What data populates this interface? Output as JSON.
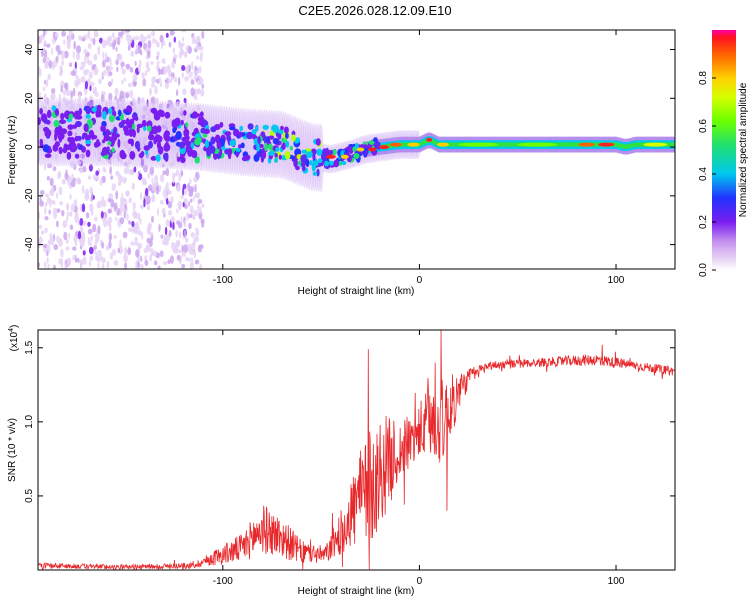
{
  "title": "C2E5.2026.028.12.09.E10",
  "chart_data": [
    {
      "type": "heatmap",
      "name": "spectrogram",
      "xlabel": "Height of straight line (km)",
      "ylabel": "Frequency (Hz)",
      "xlim": [
        -194,
        130
      ],
      "ylim": [
        -50,
        48
      ],
      "xticks": [
        -100,
        0,
        100
      ],
      "yticks": [
        -40,
        -20,
        0,
        20,
        40
      ],
      "colorbar": {
        "label": "Normalized spectral amplitude",
        "range": [
          0,
          1
        ],
        "ticks": [
          "0.0",
          "0.2",
          "0.4",
          "0.6",
          "0.8"
        ]
      },
      "ridge": [
        {
          "x": -194,
          "f": 6
        },
        {
          "x": -160,
          "f": 6
        },
        {
          "x": -130,
          "f": 5
        },
        {
          "x": -110,
          "f": 4
        },
        {
          "x": -90,
          "f": 2
        },
        {
          "x": -70,
          "f": 1
        },
        {
          "x": -55,
          "f": -4
        },
        {
          "x": -45,
          "f": -5
        },
        {
          "x": -35,
          "f": -3
        },
        {
          "x": -28,
          "f": -1
        },
        {
          "x": -20,
          "f": 0
        },
        {
          "x": -10,
          "f": 1
        },
        {
          "x": 0,
          "f": 1
        },
        {
          "x": 5,
          "f": 3
        },
        {
          "x": 10,
          "f": 1
        },
        {
          "x": 30,
          "f": 1
        },
        {
          "x": 60,
          "f": 1
        },
        {
          "x": 90,
          "f": 1
        },
        {
          "x": 100,
          "f": 1
        },
        {
          "x": 105,
          "f": 0
        },
        {
          "x": 110,
          "f": 1
        },
        {
          "x": 130,
          "f": 1
        }
      ]
    },
    {
      "type": "line",
      "name": "snr",
      "xlabel": "Height of straight line (km)",
      "ylabel": "SNR (10 * v/v)",
      "scale_label_prefix": "(x10",
      "scale_label_exp": "4",
      "scale_label_suffix": ")",
      "xlim": [
        -194,
        130
      ],
      "ylim": [
        0,
        1.62
      ],
      "xticks": [
        -100,
        0,
        100
      ],
      "yticks": [
        0.5,
        1.0,
        1.5
      ],
      "ytick_labels": [
        "0.5",
        "1.0",
        "1.5"
      ],
      "color": "#e8272a",
      "envelope": [
        {
          "x": -194,
          "y": 0.03,
          "a": 0.02
        },
        {
          "x": -150,
          "y": 0.02,
          "a": 0.015
        },
        {
          "x": -115,
          "y": 0.03,
          "a": 0.02
        },
        {
          "x": -105,
          "y": 0.08,
          "a": 0.05
        },
        {
          "x": -90,
          "y": 0.15,
          "a": 0.1
        },
        {
          "x": -80,
          "y": 0.28,
          "a": 0.17
        },
        {
          "x": -70,
          "y": 0.22,
          "a": 0.14
        },
        {
          "x": -60,
          "y": 0.12,
          "a": 0.08
        },
        {
          "x": -48,
          "y": 0.1,
          "a": 0.06
        },
        {
          "x": -40,
          "y": 0.25,
          "a": 0.15
        },
        {
          "x": -32,
          "y": 0.45,
          "a": 0.3
        },
        {
          "x": -25,
          "y": 0.55,
          "a": 0.4
        },
        {
          "x": -18,
          "y": 0.7,
          "a": 0.35
        },
        {
          "x": -10,
          "y": 0.8,
          "a": 0.2
        },
        {
          "x": -2,
          "y": 0.9,
          "a": 0.18
        },
        {
          "x": 5,
          "y": 1.0,
          "a": 0.25
        },
        {
          "x": 12,
          "y": 1.0,
          "a": 0.3
        },
        {
          "x": 18,
          "y": 1.15,
          "a": 0.18
        },
        {
          "x": 25,
          "y": 1.3,
          "a": 0.06
        },
        {
          "x": 35,
          "y": 1.38,
          "a": 0.03
        },
        {
          "x": 60,
          "y": 1.4,
          "a": 0.03
        },
        {
          "x": 90,
          "y": 1.42,
          "a": 0.04
        },
        {
          "x": 110,
          "y": 1.38,
          "a": 0.03
        },
        {
          "x": 130,
          "y": 1.34,
          "a": 0.03
        }
      ],
      "peaks": [
        {
          "x": -26,
          "y": 1.49
        },
        {
          "x": 8,
          "y": 1.4
        },
        {
          "x": 11,
          "y": 1.62
        },
        {
          "x": 14,
          "y": 0.4
        },
        {
          "x": 93,
          "y": 1.52
        }
      ]
    }
  ]
}
